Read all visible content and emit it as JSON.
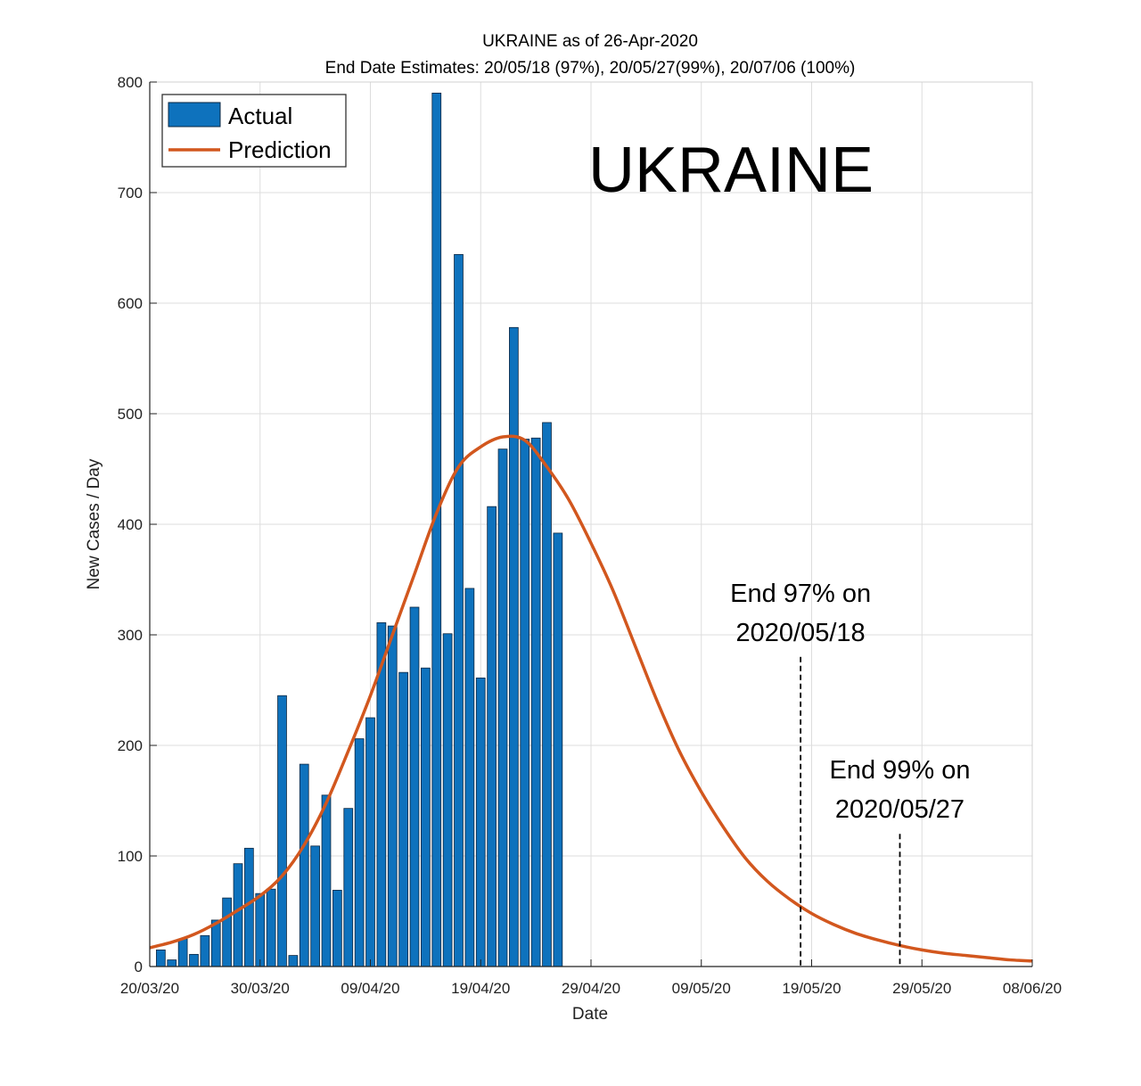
{
  "chart_data": {
    "type": "bar",
    "title": "UKRAINE as of 26-Apr-2020",
    "subtitle": "End Date Estimates: 20/05/18 (97%), 20/05/27(99%), 20/07/06 (100%)",
    "xlabel": "Date",
    "ylabel": "New Cases / Day",
    "ylim": [
      0,
      800
    ],
    "yticks": [
      0,
      100,
      200,
      300,
      400,
      500,
      600,
      700,
      800
    ],
    "xlim": [
      "2020-03-20",
      "2020-06-08"
    ],
    "xticks": [
      {
        "date": "2020-03-20",
        "label": "20/03/20"
      },
      {
        "date": "2020-03-30",
        "label": "30/03/20"
      },
      {
        "date": "2020-04-09",
        "label": "09/04/20"
      },
      {
        "date": "2020-04-19",
        "label": "19/04/20"
      },
      {
        "date": "2020-04-29",
        "label": "29/04/20"
      },
      {
        "date": "2020-05-09",
        "label": "09/05/20"
      },
      {
        "date": "2020-05-19",
        "label": "19/05/20"
      },
      {
        "date": "2020-05-29",
        "label": "29/05/20"
      },
      {
        "date": "2020-06-08",
        "label": "08/06/20"
      }
    ],
    "grid": true,
    "legend_position": "top-left",
    "big_label": "UKRAINE",
    "colors": {
      "bars": "#0e72bd",
      "bar_edge": "#0b2540",
      "prediction": "#d2571e",
      "grid": "#dddddd"
    },
    "series": [
      {
        "name": "Actual",
        "type": "bar",
        "x": [
          "2020-03-21",
          "2020-03-22",
          "2020-03-23",
          "2020-03-24",
          "2020-03-25",
          "2020-03-26",
          "2020-03-27",
          "2020-03-28",
          "2020-03-29",
          "2020-03-30",
          "2020-03-31",
          "2020-04-01",
          "2020-04-02",
          "2020-04-03",
          "2020-04-04",
          "2020-04-05",
          "2020-04-06",
          "2020-04-07",
          "2020-04-08",
          "2020-04-09",
          "2020-04-10",
          "2020-04-11",
          "2020-04-12",
          "2020-04-13",
          "2020-04-14",
          "2020-04-15",
          "2020-04-16",
          "2020-04-17",
          "2020-04-18",
          "2020-04-19",
          "2020-04-20",
          "2020-04-21",
          "2020-04-22",
          "2020-04-23",
          "2020-04-24",
          "2020-04-25",
          "2020-04-26"
        ],
        "values": [
          15,
          6,
          25,
          11,
          28,
          42,
          62,
          93,
          107,
          66,
          70,
          245,
          10,
          183,
          109,
          155,
          69,
          143,
          206,
          225,
          311,
          308,
          266,
          325,
          270,
          790,
          301,
          644,
          342,
          261,
          416,
          468,
          578,
          477,
          478,
          492,
          392
        ]
      },
      {
        "name": "Prediction",
        "type": "line",
        "x": [
          "2020-03-20",
          "2020-03-22",
          "2020-03-24",
          "2020-03-26",
          "2020-03-28",
          "2020-03-30",
          "2020-04-01",
          "2020-04-03",
          "2020-04-05",
          "2020-04-07",
          "2020-04-09",
          "2020-04-11",
          "2020-04-13",
          "2020-04-15",
          "2020-04-17",
          "2020-04-19",
          "2020-04-21",
          "2020-04-23",
          "2020-04-25",
          "2020-04-27",
          "2020-04-29",
          "2020-05-01",
          "2020-05-03",
          "2020-05-05",
          "2020-05-07",
          "2020-05-09",
          "2020-05-11",
          "2020-05-13",
          "2020-05-15",
          "2020-05-17",
          "2020-05-19",
          "2020-05-21",
          "2020-05-23",
          "2020-05-25",
          "2020-05-27",
          "2020-05-29",
          "2020-05-31",
          "2020-06-02",
          "2020-06-04",
          "2020-06-06",
          "2020-06-08"
        ],
        "values": [
          17,
          22,
          29,
          39,
          51,
          64,
          82,
          110,
          148,
          195,
          245,
          300,
          355,
          410,
          452,
          470,
          479,
          476,
          452,
          422,
          383,
          340,
          290,
          240,
          195,
          158,
          126,
          98,
          77,
          61,
          48,
          38,
          30,
          24,
          19,
          15,
          12,
          10,
          8,
          6,
          5
        ]
      }
    ],
    "annotations": [
      {
        "line1": "End 97% on",
        "line2": "2020/05/18",
        "date": "2020-05-18",
        "line_top_value": 280
      },
      {
        "line1": "End 99% on",
        "line2": "2020/05/27",
        "date": "2020-05-27",
        "line_top_value": 120
      }
    ]
  }
}
